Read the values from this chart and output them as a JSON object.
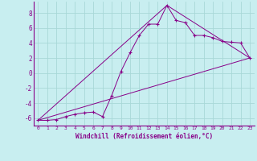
{
  "xlabel": "Windchill (Refroidissement éolien,°C)",
  "bg_color": "#c8eef0",
  "grid_color": "#a8d8d8",
  "line_color": "#880088",
  "xlim": [
    -0.5,
    23.5
  ],
  "ylim": [
    -7.0,
    9.5
  ],
  "yticks": [
    -6,
    -4,
    -2,
    0,
    2,
    4,
    6,
    8
  ],
  "xticks": [
    0,
    1,
    2,
    3,
    4,
    5,
    6,
    7,
    8,
    9,
    10,
    11,
    12,
    13,
    14,
    15,
    16,
    17,
    18,
    19,
    20,
    21,
    22,
    23
  ],
  "line1_x": [
    0,
    1,
    2,
    3,
    4,
    5,
    6,
    7,
    8,
    9,
    10,
    11,
    12,
    13,
    14,
    15,
    16,
    17,
    18,
    19,
    20,
    21,
    22,
    23
  ],
  "line1_y": [
    -6.3,
    -6.3,
    -6.2,
    -5.8,
    -5.5,
    -5.3,
    -5.2,
    -5.8,
    -3.0,
    0.2,
    2.7,
    5.0,
    6.5,
    6.5,
    9.0,
    7.0,
    6.7,
    5.0,
    5.0,
    4.7,
    4.2,
    4.1,
    4.0,
    2.0
  ],
  "line2_x": [
    0,
    23
  ],
  "line2_y": [
    -6.3,
    2.0
  ],
  "line3_x": [
    0,
    14,
    23
  ],
  "line3_y": [
    -6.3,
    9.0,
    2.0
  ]
}
